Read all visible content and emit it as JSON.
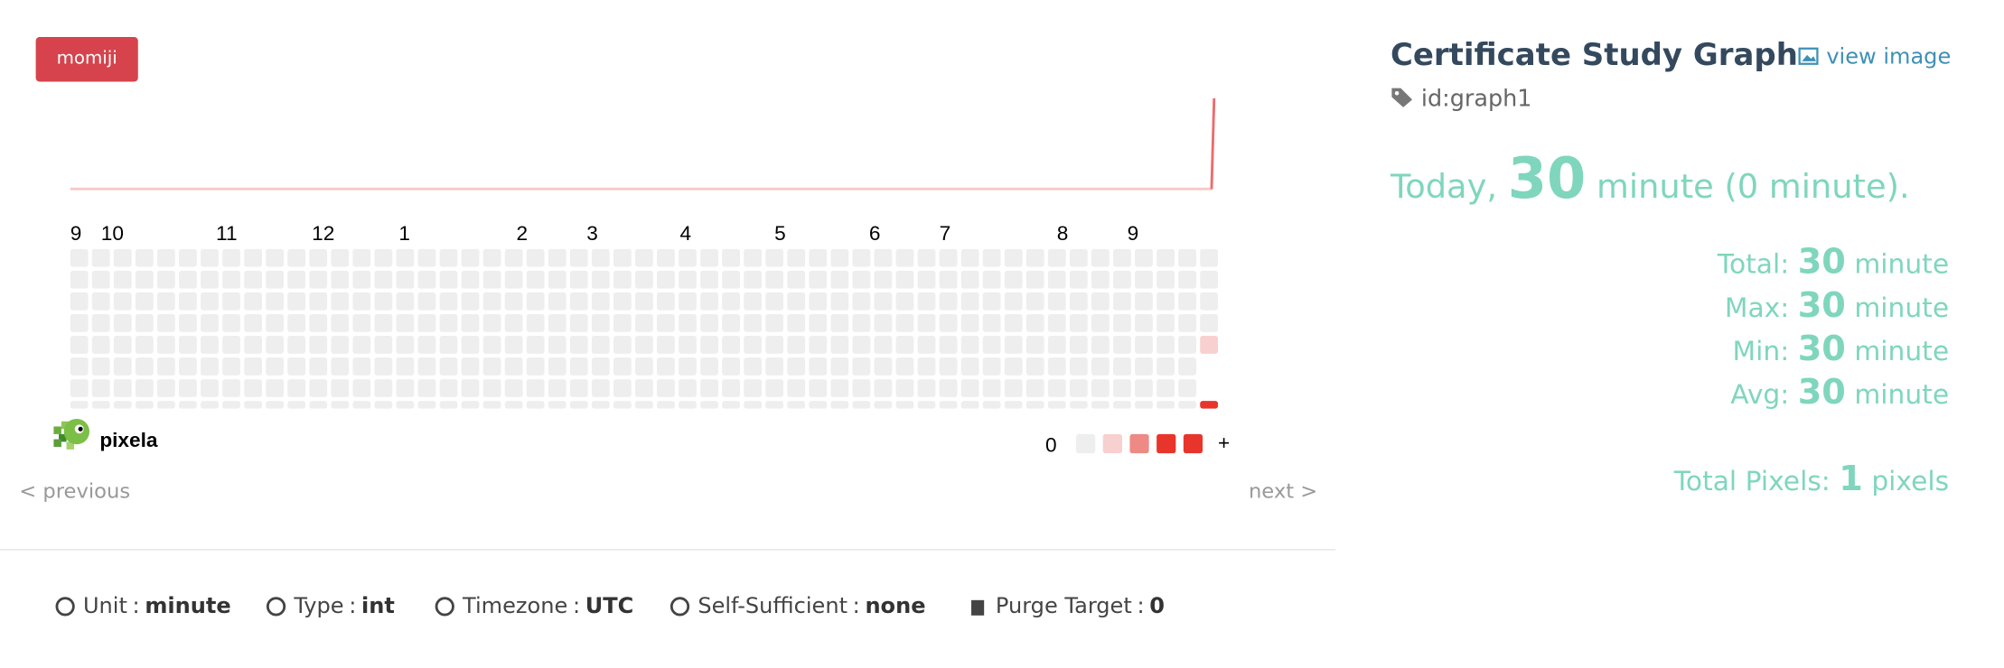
{
  "badge": "momiji",
  "months": [
    "9",
    "10",
    "11",
    "12",
    "1",
    "2",
    "3",
    "4",
    "5",
    "6",
    "7",
    "8",
    "9"
  ],
  "legend": {
    "low": "0",
    "high": "+"
  },
  "logo": "pixela",
  "nav": {
    "previous": "< previous",
    "next": "next >"
  },
  "info": {
    "title": "Certificate Study Graph",
    "view_image": "view image",
    "id": "id:graph1",
    "today": {
      "prefix": "Today,",
      "value": "30",
      "unit": "minute",
      "diff": "(0 minute)."
    },
    "stats": [
      {
        "label": "Total:",
        "value": "30",
        "unit": "minute"
      },
      {
        "label": "Max:",
        "value": "30",
        "unit": "minute"
      },
      {
        "label": "Min:",
        "value": "30",
        "unit": "minute"
      },
      {
        "label": "Avg:",
        "value": "30",
        "unit": "minute"
      }
    ],
    "pixels": {
      "label": "Total Pixels:",
      "value": "1",
      "unit": "pixels"
    }
  },
  "footer": {
    "separator": ":",
    "items": [
      {
        "label": "Unit",
        "value": "minute"
      },
      {
        "label": "Type",
        "value": "int"
      },
      {
        "label": "Timezone",
        "value": "UTC"
      },
      {
        "label": "Self-Sufficient",
        "value": "none"
      },
      {
        "label": "Purge Target",
        "value": "0"
      }
    ]
  }
}
